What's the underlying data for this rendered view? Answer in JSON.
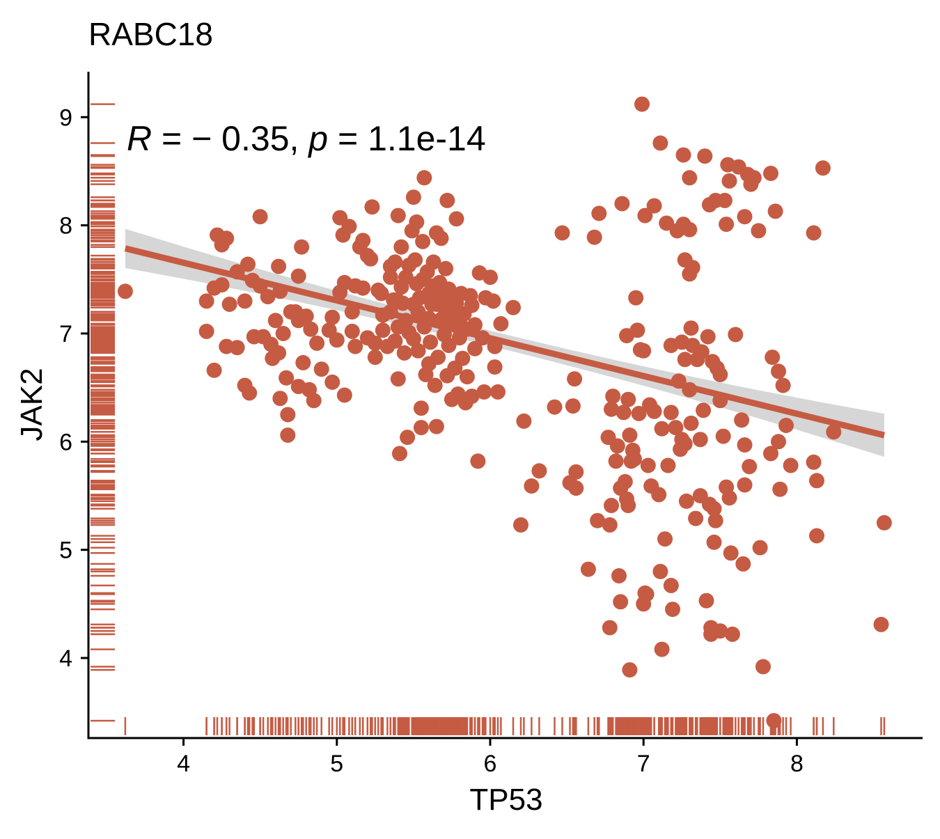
{
  "chart_data": {
    "type": "scatter",
    "title": "RABC18",
    "xlabel": "TP53",
    "ylabel": "JAK2",
    "xlim": [
      3.38,
      8.82
    ],
    "ylim": [
      3.26,
      9.42
    ],
    "x_ticks": [
      4,
      5,
      6,
      7,
      8
    ],
    "y_ticks": [
      4,
      5,
      6,
      7,
      8,
      9
    ],
    "annotation": {
      "r_symbol": "R",
      "r_text": " = − 0.35, ",
      "p_symbol": "p",
      "p_text": " = 1.1e-14"
    },
    "regression": {
      "x_range": [
        3.62,
        8.57
      ],
      "intercept": 9.05,
      "slope": -0.349,
      "ci_halfwidth_at_ends": 0.2,
      "ci_halfwidth_center": 0.07,
      "ci_center_x": 6.0
    },
    "rug": {
      "x_sides": "bottom",
      "y_sides": "left"
    },
    "colors": {
      "points": "#c65b43",
      "line": "#c65b43",
      "band": "#cccccc",
      "axis": "#000000"
    },
    "points": [
      [
        3.62,
        7.39
      ],
      [
        4.15,
        7.3
      ],
      [
        4.15,
        7.02
      ],
      [
        4.2,
        7.42
      ],
      [
        4.2,
        6.66
      ],
      [
        4.22,
        7.91
      ],
      [
        4.25,
        7.82
      ],
      [
        4.28,
        7.88
      ],
      [
        4.25,
        7.45
      ],
      [
        4.28,
        6.88
      ],
      [
        4.3,
        7.27
      ],
      [
        4.35,
        7.57
      ],
      [
        4.35,
        6.87
      ],
      [
        4.4,
        7.3
      ],
      [
        4.42,
        7.64
      ],
      [
        4.45,
        7.49
      ],
      [
        4.4,
        6.52
      ],
      [
        4.43,
        6.45
      ],
      [
        4.46,
        6.97
      ],
      [
        4.5,
        8.08
      ],
      [
        4.5,
        7.44
      ],
      [
        4.52,
        6.97
      ],
      [
        4.55,
        7.34
      ],
      [
        4.57,
        6.9
      ],
      [
        4.58,
        6.77
      ],
      [
        4.6,
        7.12
      ],
      [
        4.62,
        7.62
      ],
      [
        4.62,
        6.82
      ],
      [
        4.63,
        7.39
      ],
      [
        4.65,
        7.0
      ],
      [
        4.63,
        6.4
      ],
      [
        4.68,
        6.25
      ],
      [
        4.68,
        6.06
      ],
      [
        4.67,
        6.59
      ],
      [
        4.7,
        7.2
      ],
      [
        4.73,
        7.2
      ],
      [
        4.75,
        7.12
      ],
      [
        4.75,
        7.53
      ],
      [
        4.75,
        6.51
      ],
      [
        4.77,
        7.8
      ],
      [
        4.78,
        6.73
      ],
      [
        4.8,
        7.16
      ],
      [
        4.82,
        6.48
      ],
      [
        4.83,
        7.04
      ],
      [
        4.85,
        6.38
      ],
      [
        4.87,
        6.91
      ],
      [
        4.9,
        6.67
      ],
      [
        4.95,
        7.03
      ],
      [
        4.97,
        6.55
      ],
      [
        4.97,
        7.15
      ],
      [
        5.0,
        6.94
      ],
      [
        5.02,
        7.38
      ],
      [
        5.02,
        8.07
      ],
      [
        5.04,
        7.91
      ],
      [
        5.05,
        6.43
      ],
      [
        5.05,
        7.47
      ],
      [
        5.08,
        7.99
      ],
      [
        5.1,
        7.02
      ],
      [
        5.1,
        7.2
      ],
      [
        5.12,
        6.88
      ],
      [
        5.12,
        7.44
      ],
      [
        5.15,
        7.8
      ],
      [
        5.17,
        7.86
      ],
      [
        5.17,
        7.42
      ],
      [
        5.2,
        6.96
      ],
      [
        5.2,
        7.72
      ],
      [
        5.22,
        7.69
      ],
      [
        5.23,
        8.17
      ],
      [
        5.25,
        6.91
      ],
      [
        5.25,
        6.78
      ],
      [
        5.27,
        7.4
      ],
      [
        5.29,
        7.37
      ],
      [
        5.3,
        7.03
      ],
      [
        5.3,
        7.17
      ],
      [
        5.33,
        6.88
      ],
      [
        5.35,
        7.52
      ],
      [
        5.35,
        7.2
      ],
      [
        5.35,
        7.62
      ],
      [
        5.37,
        7.31
      ],
      [
        5.38,
        7.66
      ],
      [
        5.38,
        6.93
      ],
      [
        5.4,
        8.09
      ],
      [
        5.4,
        7.06
      ],
      [
        5.4,
        7.3
      ],
      [
        5.4,
        6.58
      ],
      [
        5.41,
        5.89
      ],
      [
        5.42,
        7.8
      ],
      [
        5.42,
        7.43
      ],
      [
        5.43,
        7.28
      ],
      [
        5.44,
        6.82
      ],
      [
        5.45,
        7.52
      ],
      [
        5.45,
        7.12
      ],
      [
        5.46,
        6.04
      ],
      [
        5.47,
        7.01
      ],
      [
        5.47,
        7.63
      ],
      [
        5.49,
        7.95
      ],
      [
        5.5,
        8.26
      ],
      [
        5.5,
        7.27
      ],
      [
        5.5,
        6.95
      ],
      [
        5.51,
        7.68
      ],
      [
        5.52,
        8.03
      ],
      [
        5.52,
        7.46
      ],
      [
        5.53,
        7.2
      ],
      [
        5.53,
        6.84
      ],
      [
        5.54,
        7.33
      ],
      [
        5.55,
        6.31
      ],
      [
        5.55,
        6.13
      ],
      [
        5.56,
        7.85
      ],
      [
        5.56,
        7.5
      ],
      [
        5.57,
        7.06
      ],
      [
        5.57,
        8.44
      ],
      [
        5.58,
        6.62
      ],
      [
        5.59,
        7.57
      ],
      [
        5.6,
        7.37
      ],
      [
        5.6,
        7.14
      ],
      [
        5.6,
        6.72
      ],
      [
        5.61,
        6.92
      ],
      [
        5.62,
        7.27
      ],
      [
        5.63,
        7.44
      ],
      [
        5.63,
        7.66
      ],
      [
        5.64,
        6.52
      ],
      [
        5.65,
        7.93
      ],
      [
        5.65,
        7.27
      ],
      [
        5.65,
        6.14
      ],
      [
        5.66,
        6.78
      ],
      [
        5.67,
        7.47
      ],
      [
        5.68,
        7.13
      ],
      [
        5.68,
        7.88
      ],
      [
        5.69,
        7.36
      ],
      [
        5.7,
        6.99
      ],
      [
        5.7,
        7.24
      ],
      [
        5.71,
        7.6
      ],
      [
        5.72,
        6.61
      ],
      [
        5.72,
        8.23
      ],
      [
        5.73,
        7.41
      ],
      [
        5.73,
        6.89
      ],
      [
        5.74,
        7.2
      ],
      [
        5.75,
        6.39
      ],
      [
        5.75,
        7.09
      ],
      [
        5.76,
        7.34
      ],
      [
        5.77,
        6.68
      ],
      [
        5.78,
        8.06
      ],
      [
        5.78,
        7.28
      ],
      [
        5.79,
        6.44
      ],
      [
        5.8,
        7.12
      ],
      [
        5.8,
        6.96
      ],
      [
        5.81,
        7.37
      ],
      [
        5.82,
        6.77
      ],
      [
        5.83,
        7.18
      ],
      [
        5.84,
        6.36
      ],
      [
        5.85,
        7.04
      ],
      [
        5.85,
        6.6
      ],
      [
        5.87,
        7.35
      ],
      [
        5.88,
        7.26
      ],
      [
        5.88,
        6.42
      ],
      [
        5.9,
        6.86
      ],
      [
        5.9,
        7.08
      ],
      [
        5.92,
        5.82
      ],
      [
        5.93,
        7.56
      ],
      [
        5.95,
        6.96
      ],
      [
        5.96,
        6.46
      ],
      [
        5.97,
        7.33
      ],
      [
        6.0,
        7.52
      ],
      [
        6.02,
        7.3
      ],
      [
        6.03,
        6.88
      ],
      [
        6.03,
        6.69
      ],
      [
        6.05,
        6.46
      ],
      [
        6.07,
        7.09
      ],
      [
        6.15,
        7.24
      ],
      [
        6.2,
        5.23
      ],
      [
        6.22,
        6.19
      ],
      [
        6.27,
        5.59
      ],
      [
        6.32,
        5.73
      ],
      [
        6.42,
        6.32
      ],
      [
        6.47,
        7.93
      ],
      [
        6.52,
        5.62
      ],
      [
        6.54,
        6.33
      ],
      [
        6.55,
        6.58
      ],
      [
        6.56,
        5.57
      ],
      [
        6.56,
        5.72
      ],
      [
        6.64,
        4.82
      ],
      [
        6.68,
        7.89
      ],
      [
        6.7,
        5.27
      ],
      [
        6.71,
        8.11
      ],
      [
        6.77,
        6.04
      ],
      [
        6.78,
        4.28
      ],
      [
        6.78,
        5.23
      ],
      [
        6.79,
        5.41
      ],
      [
        6.79,
        6.3
      ],
      [
        6.8,
        6.42
      ],
      [
        6.82,
        5.82
      ],
      [
        6.83,
        5.96
      ],
      [
        6.84,
        4.76
      ],
      [
        6.85,
        5.57
      ],
      [
        6.85,
        4.52
      ],
      [
        6.86,
        8.2
      ],
      [
        6.87,
        6.27
      ],
      [
        6.88,
        5.63
      ],
      [
        6.89,
        5.47
      ],
      [
        6.89,
        6.98
      ],
      [
        6.9,
        6.39
      ],
      [
        6.9,
        5.41
      ],
      [
        6.91,
        6.06
      ],
      [
        6.91,
        3.89
      ],
      [
        6.92,
        5.82
      ],
      [
        6.93,
        5.92
      ],
      [
        6.94,
        5.84
      ],
      [
        6.95,
        7.33
      ],
      [
        6.96,
        7.03
      ],
      [
        6.97,
        6.26
      ],
      [
        6.98,
        6.85
      ],
      [
        6.99,
        9.12
      ],
      [
        7.0,
        4.5
      ],
      [
        7.0,
        6.84
      ],
      [
        7.01,
        8.09
      ],
      [
        7.01,
        4.6
      ],
      [
        7.02,
        4.59
      ],
      [
        7.03,
        5.78
      ],
      [
        7.04,
        6.34
      ],
      [
        7.05,
        5.59
      ],
      [
        7.07,
        6.28
      ],
      [
        7.07,
        8.18
      ],
      [
        7.1,
        5.51
      ],
      [
        7.11,
        4.8
      ],
      [
        7.11,
        8.76
      ],
      [
        7.12,
        6.12
      ],
      [
        7.12,
        4.08
      ],
      [
        7.14,
        5.1
      ],
      [
        7.15,
        8.02
      ],
      [
        7.16,
        5.78
      ],
      [
        7.18,
        4.67
      ],
      [
        7.18,
        6.27
      ],
      [
        7.18,
        6.89
      ],
      [
        7.19,
        4.45
      ],
      [
        7.21,
        6.13
      ],
      [
        7.22,
        7.95
      ],
      [
        7.23,
        6.56
      ],
      [
        7.24,
        5.93
      ],
      [
        7.25,
        6.92
      ],
      [
        7.25,
        6.02
      ],
      [
        7.26,
        8.65
      ],
      [
        7.26,
        8.01
      ],
      [
        7.27,
        5.98
      ],
      [
        7.27,
        7.68
      ],
      [
        7.27,
        6.76
      ],
      [
        7.28,
        5.45
      ],
      [
        7.3,
        7.96
      ],
      [
        7.3,
        8.44
      ],
      [
        7.3,
        6.48
      ],
      [
        7.3,
        7.55
      ],
      [
        7.31,
        7.05
      ],
      [
        7.31,
        6.17
      ],
      [
        7.32,
        6.89
      ],
      [
        7.32,
        7.61
      ],
      [
        7.34,
        5.29
      ],
      [
        7.35,
        6.76
      ],
      [
        7.37,
        5.5
      ],
      [
        7.37,
        6.02
      ],
      [
        7.38,
        6.83
      ],
      [
        7.39,
        6.29
      ],
      [
        7.4,
        8.64
      ],
      [
        7.41,
        4.53
      ],
      [
        7.42,
        6.97
      ],
      [
        7.43,
        8.19
      ],
      [
        7.43,
        5.42
      ],
      [
        7.44,
        4.22
      ],
      [
        7.44,
        4.28
      ],
      [
        7.45,
        6.74
      ],
      [
        7.46,
        5.38
      ],
      [
        7.46,
        5.07
      ],
      [
        7.47,
        5.27
      ],
      [
        7.47,
        8.23
      ],
      [
        7.48,
        6.68
      ],
      [
        7.5,
        4.25
      ],
      [
        7.5,
        6.62
      ],
      [
        7.5,
        6.38
      ],
      [
        7.52,
        6.05
      ],
      [
        7.53,
        8.23
      ],
      [
        7.54,
        5.58
      ],
      [
        7.54,
        8.01
      ],
      [
        7.55,
        8.56
      ],
      [
        7.56,
        5.48
      ],
      [
        7.56,
        8.41
      ],
      [
        7.57,
        4.97
      ],
      [
        7.58,
        4.22
      ],
      [
        7.6,
        6.99
      ],
      [
        7.62,
        8.54
      ],
      [
        7.64,
        6.2
      ],
      [
        7.65,
        4.87
      ],
      [
        7.66,
        8.08
      ],
      [
        7.66,
        5.6
      ],
      [
        7.66,
        5.97
      ],
      [
        7.68,
        8.47
      ],
      [
        7.69,
        5.77
      ],
      [
        7.7,
        8.38
      ],
      [
        7.72,
        8.44
      ],
      [
        7.75,
        7.95
      ],
      [
        7.76,
        5.02
      ],
      [
        7.78,
        3.92
      ],
      [
        7.83,
        8.48
      ],
      [
        7.84,
        6.78
      ],
      [
        7.83,
        5.89
      ],
      [
        7.85,
        3.42
      ],
      [
        7.86,
        8.13
      ],
      [
        7.88,
        6.65
      ],
      [
        7.88,
        6.0
      ],
      [
        7.89,
        5.56
      ],
      [
        7.91,
        6.52
      ],
      [
        7.93,
        6.15
      ],
      [
        7.96,
        5.78
      ],
      [
        8.11,
        5.81
      ],
      [
        8.11,
        7.93
      ],
      [
        8.13,
        5.64
      ],
      [
        8.13,
        5.13
      ],
      [
        8.17,
        8.53
      ],
      [
        8.24,
        6.09
      ],
      [
        8.55,
        4.31
      ],
      [
        8.57,
        5.25
      ]
    ]
  }
}
